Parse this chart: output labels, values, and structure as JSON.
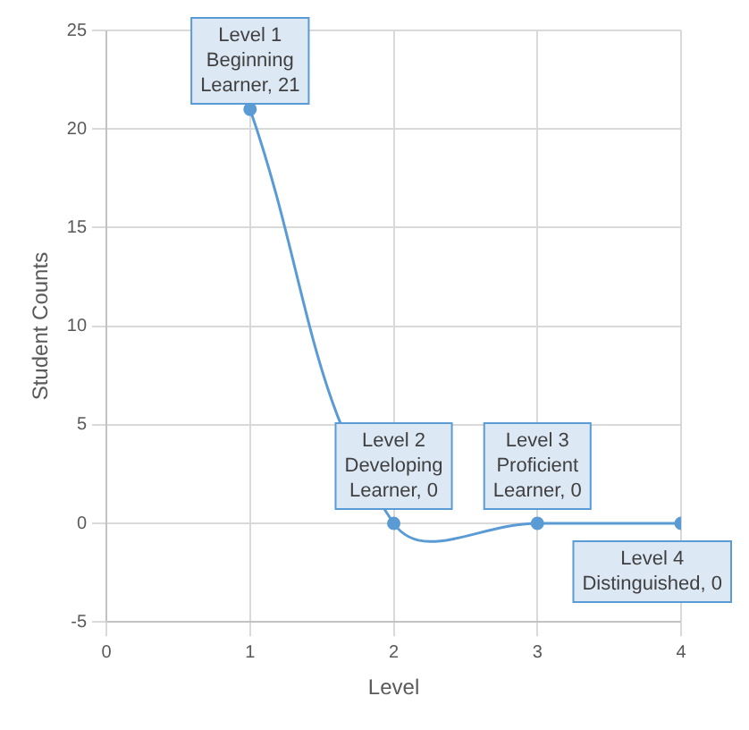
{
  "chart_data": {
    "type": "line",
    "xlabel": "Level",
    "ylabel": "Student Counts",
    "x": [
      1,
      2,
      3,
      4
    ],
    "series": [
      {
        "color": "#5b9bd5",
        "values": [
          21,
          0,
          0,
          0
        ]
      }
    ],
    "xlim": [
      0,
      4
    ],
    "xticks": [
      0,
      1,
      2,
      3,
      4
    ],
    "ylim": [
      -5,
      25
    ],
    "yticks": [
      -5,
      0,
      5,
      10,
      15,
      20,
      25
    ],
    "grid": true,
    "legend": false,
    "marker": "circle",
    "line_style": "solid",
    "annotations": [
      {
        "text": "Level 1 Beginning Learner, 21",
        "x": 1,
        "y": 21
      },
      {
        "text": "Level 2 Developing Learner, 0",
        "x": 2,
        "y": 0
      },
      {
        "text": "Level 3 Proficient Learner, 0",
        "x": 3,
        "y": 0
      },
      {
        "text": "Level 4 Distinguished, 0",
        "x": 4,
        "y": 0
      }
    ]
  }
}
